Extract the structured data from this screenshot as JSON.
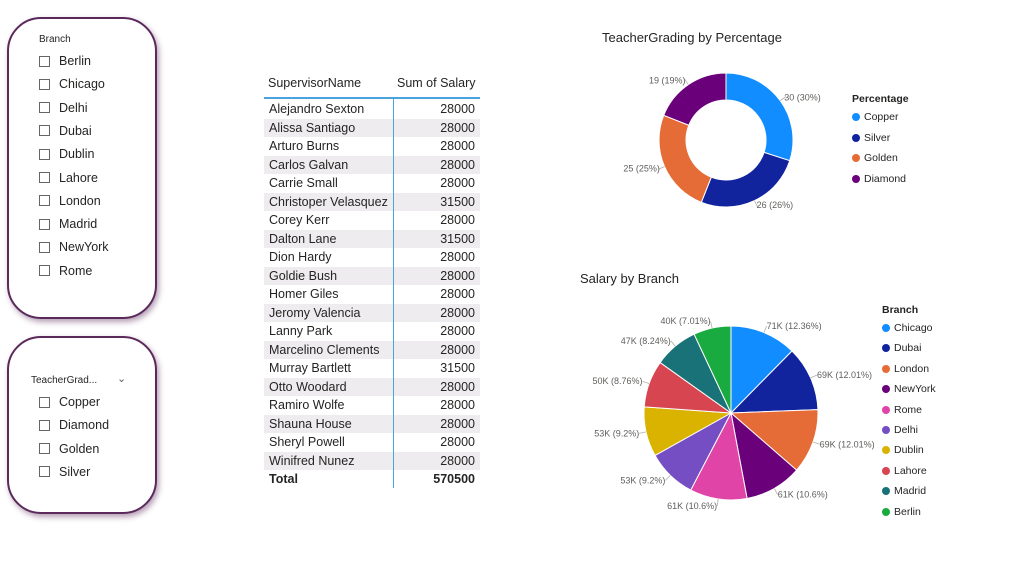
{
  "slicer_branch": {
    "title": "Branch",
    "options": [
      "Berlin",
      "Chicago",
      "Delhi",
      "Dubai",
      "Dublin",
      "Lahore",
      "London",
      "Madrid",
      "NewYork",
      "Rome"
    ]
  },
  "slicer_grade": {
    "title": "TeacherGrad...",
    "chevron_icon": "chevron-down-icon",
    "options": [
      "Copper",
      "Diamond",
      "Golden",
      "Silver"
    ]
  },
  "table": {
    "headers": [
      "SupervisorName",
      "Sum of Salary"
    ],
    "rows": [
      [
        "Alejandro Sexton",
        "28000"
      ],
      [
        "Alissa Santiago",
        "28000"
      ],
      [
        "Arturo Burns",
        "28000"
      ],
      [
        "Carlos Galvan",
        "28000"
      ],
      [
        "Carrie Small",
        "28000"
      ],
      [
        "Christoper Velasquez",
        "31500"
      ],
      [
        "Corey Kerr",
        "28000"
      ],
      [
        "Dalton Lane",
        "31500"
      ],
      [
        "Dion Hardy",
        "28000"
      ],
      [
        "Goldie Bush",
        "28000"
      ],
      [
        "Homer Giles",
        "28000"
      ],
      [
        "Jeromy Valencia",
        "28000"
      ],
      [
        "Lanny Park",
        "28000"
      ],
      [
        "Marcelino Clements",
        "28000"
      ],
      [
        "Murray Bartlett",
        "31500"
      ],
      [
        "Otto Woodard",
        "28000"
      ],
      [
        "Ramiro Wolfe",
        "28000"
      ],
      [
        "Shauna House",
        "28000"
      ],
      [
        "Sheryl Powell",
        "28000"
      ],
      [
        "Winifred Nunez",
        "28000"
      ]
    ],
    "total_label": "Total",
    "total_value": "570500"
  },
  "chart_data": [
    {
      "type": "pie",
      "variant": "donut",
      "title": "TeacherGrading by Percentage",
      "legend_title": "Percentage",
      "legend_position": "right",
      "categories": [
        "Copper",
        "Silver",
        "Golden",
        "Diamond"
      ],
      "values": [
        30,
        26,
        25,
        19
      ],
      "colors": [
        "#118DFF",
        "#12239E",
        "#E66C37",
        "#6B007B"
      ],
      "data_labels": [
        "30 (30%)",
        "26 (26%)",
        "25 (25%)",
        "19 (19%)"
      ]
    },
    {
      "type": "pie",
      "title": "Salary by Branch",
      "legend_title": "Branch",
      "legend_position": "right",
      "categories": [
        "Chicago",
        "Dubai",
        "London",
        "NewYork",
        "Rome",
        "Delhi",
        "Dublin",
        "Lahore",
        "Madrid",
        "Berlin"
      ],
      "values": [
        71,
        69,
        69,
        61,
        61,
        53,
        53,
        50,
        47,
        40
      ],
      "colors": [
        "#118DFF",
        "#12239E",
        "#E66C37",
        "#6B007B",
        "#E044A7",
        "#744EC2",
        "#D9B300",
        "#D64550",
        "#197278",
        "#1AAB40"
      ],
      "data_labels": [
        "71K (12.36%)",
        "69K (12.01%)",
        "69K (12.01%)",
        "61K (10.6%)",
        "61K (10.6%)",
        "53K (9.2%)",
        "53K (9.2%)",
        "50K (8.76%)",
        "47K (8.24%)",
        "40K (7.01%)"
      ]
    }
  ]
}
